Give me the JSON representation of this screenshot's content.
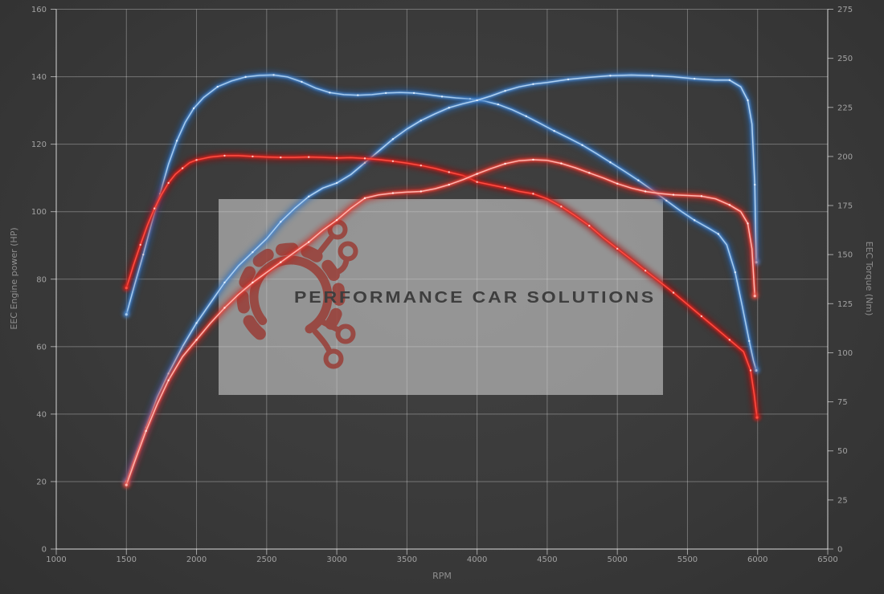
{
  "watermark": {
    "text": "PERFORMANCE CAR SOLUTIONS",
    "box_color": "#d2d2d2",
    "box_opacity": 0.58,
    "logo_color": "#9a3a33",
    "text_color": "#3e3e3e"
  },
  "chart_data": {
    "type": "line",
    "title": "",
    "xlabel": "RPM",
    "ylabel_left": "EEC Engine power (HP)",
    "ylabel_right": "EEC Torque (Nm)",
    "x_range": [
      1000,
      6500
    ],
    "y_left_range": [
      0,
      160
    ],
    "y_right_range": [
      0,
      275
    ],
    "x_ticks": [
      1000,
      1500,
      2000,
      2500,
      3000,
      3500,
      4000,
      4500,
      5000,
      5500,
      6000,
      6500
    ],
    "y_left_ticks": [
      0,
      20,
      40,
      60,
      80,
      100,
      120,
      140,
      160
    ],
    "y_right_ticks": [
      0,
      25,
      50,
      75,
      100,
      125,
      150,
      175,
      200,
      225,
      250,
      275
    ],
    "grid": true,
    "legend_position": "none",
    "background": "#3b3b3b",
    "series": [
      {
        "name": "torque-tuned-blue",
        "axis": "right",
        "unit": "Nm",
        "core": "#a9cdf0",
        "mid": "#4d89cf",
        "glow": "#1f5fae",
        "dot": "#e8f3ff",
        "points": [
          [
            1500,
            119.5
          ],
          [
            1560,
            135
          ],
          [
            1620,
            150
          ],
          [
            1680,
            166
          ],
          [
            1740,
            181
          ],
          [
            1800,
            196
          ],
          [
            1860,
            208
          ],
          [
            1920,
            217.5
          ],
          [
            1980,
            224.5
          ],
          [
            2050,
            230
          ],
          [
            2150,
            235.5
          ],
          [
            2250,
            238.5
          ],
          [
            2350,
            240.5
          ],
          [
            2450,
            241.3
          ],
          [
            2550,
            241.5
          ],
          [
            2650,
            240.5
          ],
          [
            2750,
            238
          ],
          [
            2850,
            234.8
          ],
          [
            2950,
            232.5
          ],
          [
            3050,
            231.5
          ],
          [
            3150,
            231.2
          ],
          [
            3250,
            231.5
          ],
          [
            3350,
            232.3
          ],
          [
            3450,
            232.6
          ],
          [
            3550,
            232.3
          ],
          [
            3650,
            231.5
          ],
          [
            3750,
            230.5
          ],
          [
            3850,
            229.8
          ],
          [
            3950,
            229.3
          ],
          [
            4050,
            228.3
          ],
          [
            4150,
            226.5
          ],
          [
            4250,
            223.8
          ],
          [
            4350,
            220.5
          ],
          [
            4450,
            216.8
          ],
          [
            4550,
            213
          ],
          [
            4650,
            209.5
          ],
          [
            4750,
            205.8
          ],
          [
            4850,
            201.5
          ],
          [
            4950,
            197
          ],
          [
            5050,
            192.5
          ],
          [
            5150,
            187.8
          ],
          [
            5250,
            182.8
          ],
          [
            5350,
            177.5
          ],
          [
            5450,
            172.3
          ],
          [
            5550,
            167.5
          ],
          [
            5650,
            163.5
          ],
          [
            5720,
            160.5
          ],
          [
            5780,
            155
          ],
          [
            5840,
            141
          ],
          [
            5890,
            124
          ],
          [
            5940,
            106
          ],
          [
            5970,
            96
          ],
          [
            5990,
            91
          ]
        ]
      },
      {
        "name": "power-tuned-blue",
        "axis": "left",
        "unit": "HP",
        "core": "#b4d4f2",
        "mid": "#5590d4",
        "glow": "#2466b4",
        "dot": "#e8f3ff",
        "points": [
          [
            1500,
            20
          ],
          [
            1560,
            27
          ],
          [
            1640,
            36
          ],
          [
            1720,
            45
          ],
          [
            1800,
            52
          ],
          [
            1900,
            60
          ],
          [
            2000,
            67
          ],
          [
            2100,
            73
          ],
          [
            2200,
            79
          ],
          [
            2300,
            84
          ],
          [
            2400,
            88
          ],
          [
            2500,
            92
          ],
          [
            2600,
            97
          ],
          [
            2700,
            101
          ],
          [
            2800,
            104.5
          ],
          [
            2900,
            107
          ],
          [
            3000,
            108.5
          ],
          [
            3100,
            111
          ],
          [
            3200,
            114.5
          ],
          [
            3300,
            118
          ],
          [
            3400,
            121.5
          ],
          [
            3500,
            124.5
          ],
          [
            3600,
            127
          ],
          [
            3700,
            129
          ],
          [
            3800,
            130.8
          ],
          [
            3900,
            132
          ],
          [
            4000,
            133
          ],
          [
            4100,
            134.3
          ],
          [
            4200,
            135.8
          ],
          [
            4300,
            137
          ],
          [
            4400,
            137.8
          ],
          [
            4500,
            138.3
          ],
          [
            4650,
            139.2
          ],
          [
            4800,
            139.8
          ],
          [
            4950,
            140.3
          ],
          [
            5100,
            140.5
          ],
          [
            5250,
            140.3
          ],
          [
            5400,
            140
          ],
          [
            5550,
            139.4
          ],
          [
            5700,
            139
          ],
          [
            5800,
            139
          ],
          [
            5880,
            137
          ],
          [
            5930,
            133
          ],
          [
            5960,
            126
          ],
          [
            5980,
            108
          ],
          [
            5990,
            85
          ]
        ]
      },
      {
        "name": "torque-stock-red",
        "axis": "right",
        "unit": "Nm",
        "core": "#ff5044",
        "mid": "#de201a",
        "glow": "#9c100a",
        "dot": "#ffd9d4",
        "points": [
          [
            1500,
            133
          ],
          [
            1550,
            144.5
          ],
          [
            1600,
            155
          ],
          [
            1650,
            165
          ],
          [
            1700,
            173.5
          ],
          [
            1750,
            180.5
          ],
          [
            1800,
            186.5
          ],
          [
            1850,
            191
          ],
          [
            1900,
            194
          ],
          [
            1950,
            196.8
          ],
          [
            2000,
            198.2
          ],
          [
            2100,
            199.7
          ],
          [
            2200,
            200.4
          ],
          [
            2300,
            200.4
          ],
          [
            2400,
            200
          ],
          [
            2500,
            199.7
          ],
          [
            2600,
            199.5
          ],
          [
            2700,
            199.5
          ],
          [
            2800,
            199.7
          ],
          [
            2900,
            199.5
          ],
          [
            3000,
            199.2
          ],
          [
            3100,
            199.4
          ],
          [
            3200,
            199
          ],
          [
            3300,
            198.4
          ],
          [
            3400,
            197.6
          ],
          [
            3500,
            196.6
          ],
          [
            3600,
            195.4
          ],
          [
            3700,
            193.9
          ],
          [
            3800,
            192
          ],
          [
            3900,
            190.3
          ],
          [
            4000,
            187
          ],
          [
            4100,
            185.5
          ],
          [
            4200,
            184
          ],
          [
            4300,
            182.2
          ],
          [
            4400,
            181
          ],
          [
            4500,
            178.4
          ],
          [
            4600,
            174.5
          ],
          [
            4700,
            169.8
          ],
          [
            4800,
            164.7
          ],
          [
            4900,
            158.6
          ],
          [
            5000,
            153
          ],
          [
            5100,
            147.5
          ],
          [
            5200,
            141.8
          ],
          [
            5300,
            136.3
          ],
          [
            5400,
            130.6
          ],
          [
            5500,
            124.6
          ],
          [
            5600,
            118.6
          ],
          [
            5700,
            112.6
          ],
          [
            5800,
            106.6
          ],
          [
            5900,
            100.5
          ],
          [
            5950,
            91
          ],
          [
            5975,
            79
          ],
          [
            5996,
            67
          ]
        ]
      },
      {
        "name": "power-stock-red",
        "axis": "left",
        "unit": "HP",
        "core": "#ffb9b2",
        "mid": "#ef4f45",
        "glow": "#c41c14",
        "dot": "#fff1ef",
        "points": [
          [
            1500,
            19
          ],
          [
            1560,
            26
          ],
          [
            1640,
            35
          ],
          [
            1720,
            43
          ],
          [
            1800,
            50
          ],
          [
            1900,
            57
          ],
          [
            2000,
            62
          ],
          [
            2100,
            67
          ],
          [
            2200,
            71.5
          ],
          [
            2300,
            75.5
          ],
          [
            2400,
            79
          ],
          [
            2500,
            82
          ],
          [
            2600,
            85
          ],
          [
            2700,
            88
          ],
          [
            2800,
            91
          ],
          [
            2900,
            94.5
          ],
          [
            3000,
            97.5
          ],
          [
            3100,
            101
          ],
          [
            3200,
            104
          ],
          [
            3300,
            105
          ],
          [
            3400,
            105.5
          ],
          [
            3500,
            105.8
          ],
          [
            3600,
            106
          ],
          [
            3700,
            106.8
          ],
          [
            3800,
            108
          ],
          [
            3900,
            109.5
          ],
          [
            4000,
            111.2
          ],
          [
            4100,
            112.8
          ],
          [
            4200,
            114.2
          ],
          [
            4300,
            115.1
          ],
          [
            4400,
            115.4
          ],
          [
            4500,
            115.2
          ],
          [
            4600,
            114.3
          ],
          [
            4700,
            113
          ],
          [
            4800,
            111.5
          ],
          [
            4900,
            110
          ],
          [
            5000,
            108.3
          ],
          [
            5100,
            107
          ],
          [
            5200,
            106
          ],
          [
            5300,
            105.4
          ],
          [
            5400,
            105
          ],
          [
            5500,
            104.8
          ],
          [
            5600,
            104.6
          ],
          [
            5700,
            103.8
          ],
          [
            5800,
            102
          ],
          [
            5880,
            100
          ],
          [
            5930,
            96.5
          ],
          [
            5960,
            89
          ],
          [
            5980,
            75
          ]
        ]
      }
    ]
  },
  "layout_colors": {
    "grid": "rgba(255,255,255,0.30)",
    "spine": "rgba(255,255,255,0.55)",
    "tick_text": "#a2a2a2",
    "axis_title": "#8f8f8f"
  }
}
